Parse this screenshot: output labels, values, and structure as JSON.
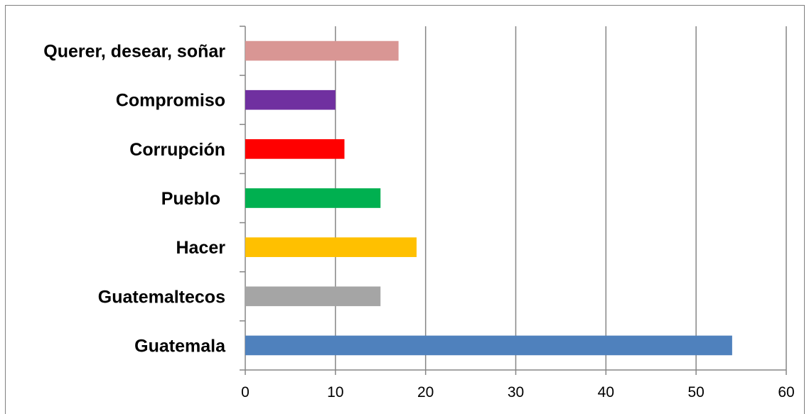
{
  "chart_data": {
    "type": "bar",
    "orientation": "horizontal",
    "categories": [
      "Guatemala",
      "Guatemaltecos",
      "Hacer",
      "Pueblo ",
      "Corrupción",
      "Compromiso",
      "Querer, desear, soñar"
    ],
    "values": [
      54,
      15,
      19,
      15,
      11,
      10,
      17
    ],
    "colors": [
      "#4f81bd",
      "#a5a5a5",
      "#ffc000",
      "#00b050",
      "#ff0000",
      "#7030a0",
      "#d99694"
    ],
    "xlim": [
      0,
      60
    ],
    "xticks": [
      0,
      10,
      20,
      30,
      40,
      50,
      60
    ],
    "grid": true,
    "legend": "none",
    "title": "",
    "xlabel": "",
    "ylabel": ""
  }
}
